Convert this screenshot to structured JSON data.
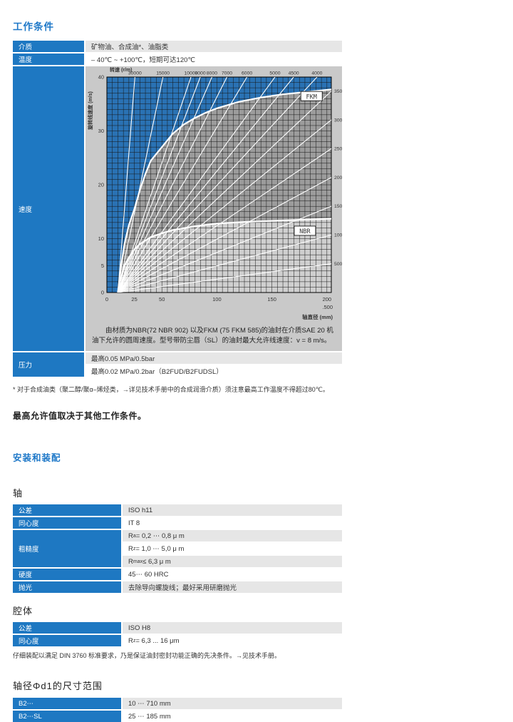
{
  "colors": {
    "accent_blue": "#1e78c8",
    "table_label_blue": "#1e78c2",
    "row_gray": "#e6e6e6",
    "chart_frame_gray": "#c9c9c9",
    "plot_blue": "#2a72b4",
    "fkm_gray": "#9c9c9c",
    "nbr_gray": "#cfcfcf"
  },
  "working_conditions": {
    "title": "工作条件",
    "rows": {
      "medium": {
        "label": "介质",
        "value": "矿物油、合成油*、油脂类"
      },
      "temperature": {
        "label": "温度",
        "value": "– 40℃ ~ +100℃，短期可达120℃"
      },
      "speed": {
        "label": "速度",
        "caption": "由材质为NBR(72 NBR 902) 以及FKM (75 FKM 585)的油封在介质SAE 20 机油下允许的圆周速度。型号带防尘唇（SL）的油封最大允许线速度：v = 8 m/s。"
      },
      "pressure": {
        "label": "压力",
        "values": [
          "最高0.05 MPa/0.5bar",
          "最高0.02 MPa/0.2bar（B2FUD/B2FUDSL）"
        ]
      }
    },
    "footnote": "* 对于合成油类（聚二醇/聚α–烯烃类，→详见技术手册中的合成润滑介质）须注意最高工作温度不得超过80℃。",
    "max_note": "最高允许值取决于其他工作条件。"
  },
  "chart_data": {
    "type": "line",
    "top_axis": {
      "label": "转速 (r/m)",
      "rpm_top_labels": [
        30000,
        15000,
        10000,
        9000,
        8000,
        7000,
        6000,
        5000,
        4500,
        4000
      ]
    },
    "right_labels": [
      3500,
      3000,
      2500,
      2000,
      1500,
      1000,
      500
    ],
    "rpm_lines": [
      30000,
      15000,
      10000,
      9000,
      8000,
      7000,
      6000,
      5000,
      4500,
      4000,
      3500,
      3000,
      2500,
      2000,
      1500,
      1000,
      500
    ],
    "x_axis": {
      "label": "轴直径 (mm)",
      "ticks": [
        0,
        25,
        50,
        100,
        150,
        200
      ],
      "extra_tick_label": ".500",
      "range": [
        0,
        204
      ]
    },
    "y_axis": {
      "label": "旋转线速度 (m/s)",
      "ticks": [
        0,
        5,
        10,
        20,
        30,
        40
      ],
      "range": [
        0,
        40
      ]
    },
    "grid": {
      "x_step": 5,
      "y_step": 1
    },
    "series": [
      {
        "name": "FKM",
        "label_at": [
          186,
          36.4
        ],
        "points": [
          [
            10,
            0
          ],
          [
            13,
            5
          ],
          [
            16,
            9
          ],
          [
            20,
            12.5
          ],
          [
            25,
            15.5
          ],
          [
            30,
            19
          ],
          [
            35,
            22
          ],
          [
            40,
            24.5
          ],
          [
            50,
            27
          ],
          [
            60,
            29.5
          ],
          [
            70,
            31.2
          ],
          [
            80,
            32.4
          ],
          [
            90,
            33.4
          ],
          [
            100,
            34.2
          ],
          [
            120,
            35.4
          ],
          [
            140,
            36.2
          ],
          [
            160,
            36.8
          ],
          [
            180,
            37.2
          ],
          [
            204,
            37.7
          ]
        ]
      },
      {
        "name": "NBR",
        "label_at": [
          180,
          11.4
        ],
        "points": [
          [
            10,
            0
          ],
          [
            12,
            2
          ],
          [
            14,
            3.5
          ],
          [
            16,
            5
          ],
          [
            20,
            6.5
          ],
          [
            25,
            8
          ],
          [
            30,
            9
          ],
          [
            40,
            10.3
          ],
          [
            50,
            11
          ],
          [
            60,
            11.6
          ],
          [
            80,
            12.3
          ],
          [
            100,
            12.8
          ],
          [
            125,
            13.1
          ],
          [
            150,
            13.3
          ],
          [
            175,
            13.5
          ],
          [
            204,
            13.7
          ]
        ]
      }
    ]
  },
  "assembly": {
    "title": "安装和装配"
  },
  "shaft": {
    "title": "轴",
    "rows": [
      {
        "label": "公差",
        "value": "ISO h11"
      },
      {
        "label": "同心度",
        "value": "IT 8"
      },
      {
        "label": "粗糙度",
        "subs": [
          {
            "pre": "R",
            "sub": "a",
            "post": " = 0,2 ⋯ 0,8 μ m"
          },
          {
            "pre": "R",
            "sub": "z",
            "post": " = 1,0 ⋯ 5,0 μ m"
          },
          {
            "pre": "R",
            "sub": "max",
            "post": " ≤ 6,3 μ m"
          }
        ]
      },
      {
        "label": "硬度",
        "value": "45⋯ 60 HRC"
      },
      {
        "label": "抛光",
        "value": "去除导向螺旋线；最好采用研磨抛光"
      }
    ]
  },
  "cavity": {
    "title": "腔体",
    "rows": [
      {
        "label": "公差",
        "value": "ISO H8"
      },
      {
        "label": "同心度",
        "pre": "R",
        "sub": "z",
        "post": " = 6,3 ... 16 μm"
      }
    ],
    "note": "仔细装配以满足 DIN 3760 标准要求，乃是保证油封密封功能正确的先决条件。→见技术手册。"
  },
  "size_range": {
    "title": "轴径Φd1的尺寸范围",
    "rows": [
      {
        "label": "B2⋯",
        "value": "10 ⋯ 710 mm"
      },
      {
        "label": "B2⋯SL",
        "value": "25 ⋯ 185 mm"
      }
    ]
  }
}
